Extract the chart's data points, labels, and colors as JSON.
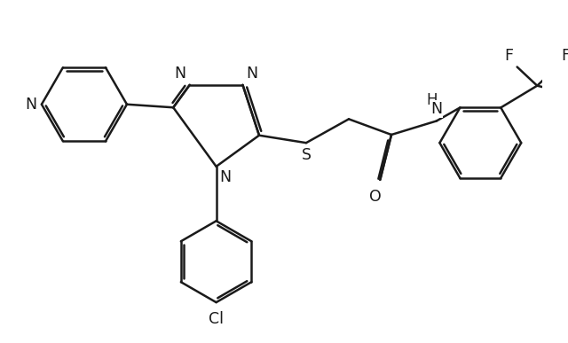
{
  "bg_color": "#ffffff",
  "line_color": "#1a1a1a",
  "line_width": 1.8,
  "figsize": [
    6.4,
    3.87
  ],
  "dpi": 100,
  "xlim": [
    0.0,
    8.5
  ],
  "ylim": [
    -1.2,
    4.2
  ]
}
